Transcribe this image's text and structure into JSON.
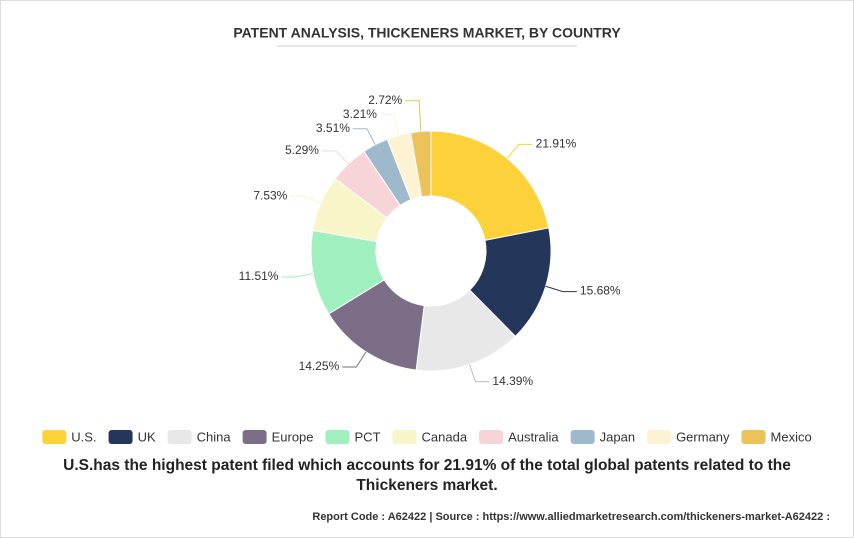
{
  "chart_data": {
    "type": "donut",
    "title": "PATENT ANALYSIS, THICKENERS MARKET, BY COUNTRY",
    "categories": [
      "U.S.",
      "UK",
      "China",
      "Europe",
      "PCT",
      "Canada",
      "Australia",
      "Japan",
      "Germany",
      "Mexico"
    ],
    "values": [
      21.91,
      15.68,
      14.39,
      14.25,
      11.51,
      7.53,
      5.29,
      3.51,
      3.21,
      2.72
    ],
    "value_labels": [
      "21.91%",
      "15.68%",
      "14.39%",
      "14.25%",
      "11.51%",
      "7.53%",
      "5.29%",
      "3.51%",
      "3.21%",
      "2.72%"
    ],
    "colors": [
      "#fdd13a",
      "#243659",
      "#e8e8e8",
      "#7b6e86",
      "#a0efbf",
      "#f8f5c8",
      "#f7d4d7",
      "#9fb9cc",
      "#fdf3d3",
      "#ebc35a"
    ],
    "legend": "bottom",
    "caption": "U.S.has the highest patent filed which accounts for 21.91% of the total global patents related to the Thickeners market.",
    "footer": "Report Code : A62422  |  Source : https://www.alliedmarketresearch.com/thickeners-market-A62422 :"
  }
}
